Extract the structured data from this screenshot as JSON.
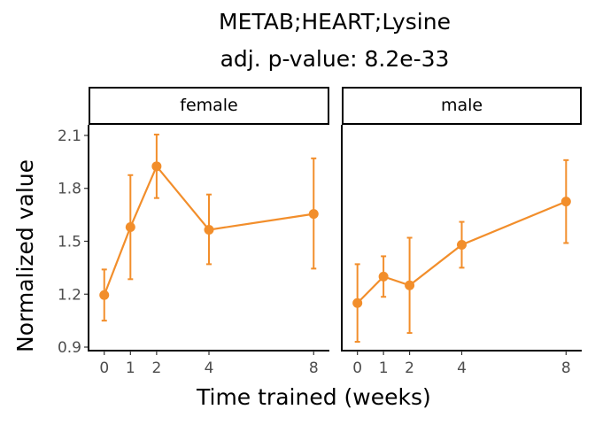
{
  "chart_data": {
    "type": "line",
    "title": "METAB;HEART;Lysine",
    "subtitle": "adj. p-value: 8.2e-33",
    "xlabel": "Time trained (weeks)",
    "ylabel": "Normalized value",
    "x_ticks": [
      0,
      1,
      2,
      4,
      8
    ],
    "y_ticks": [
      0.9,
      1.2,
      1.5,
      1.8,
      2.1
    ],
    "y_tick_labels": [
      "0.9",
      "1.2",
      "1.5",
      "1.8",
      "2.1"
    ],
    "ylim": [
      0.88,
      2.16
    ],
    "xlim": [
      -0.6,
      8.6
    ],
    "color": "#F28E2B",
    "grid": false,
    "panels": [
      {
        "name": "female",
        "x": [
          0,
          1,
          2,
          4,
          8
        ],
        "y": [
          1.195,
          1.58,
          1.925,
          1.565,
          1.655
        ],
        "err_low": [
          1.05,
          1.285,
          1.745,
          1.37,
          1.345
        ],
        "err_high": [
          1.34,
          1.875,
          2.105,
          1.765,
          1.97
        ]
      },
      {
        "name": "male",
        "x": [
          0,
          1,
          2,
          4,
          8
        ],
        "y": [
          1.15,
          1.3,
          1.25,
          1.48,
          1.725
        ],
        "err_low": [
          0.93,
          1.185,
          0.98,
          1.35,
          1.49
        ],
        "err_high": [
          1.37,
          1.415,
          1.52,
          1.61,
          1.96
        ]
      }
    ]
  }
}
